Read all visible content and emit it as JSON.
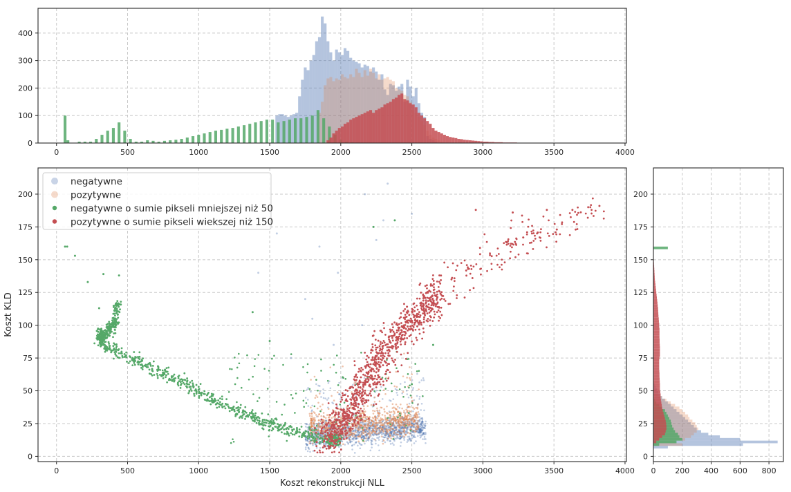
{
  "chart_data": [
    {
      "type": "histogram",
      "panel": "top",
      "xlim": [
        -130,
        4010
      ],
      "ylim": [
        0,
        490
      ],
      "xticks": [
        0,
        500,
        1000,
        1500,
        2000,
        2500,
        3000,
        3500,
        4000
      ],
      "yticks": [
        0,
        100,
        200,
        300,
        400
      ],
      "grid": true,
      "series": [
        {
          "name": "negatywne",
          "color": "#4c72b0",
          "alpha": 0.42,
          "x": [
            1550,
            1570,
            1590,
            1610,
            1630,
            1650,
            1670,
            1690,
            1710,
            1730,
            1750,
            1770,
            1790,
            1810,
            1830,
            1850,
            1870,
            1890,
            1910,
            1930,
            1950,
            1970,
            1990,
            2010,
            2030,
            2050,
            2070,
            2090,
            2110,
            2130,
            2150,
            2170,
            2190,
            2210,
            2230,
            2250,
            2270,
            2290,
            2310,
            2330,
            2350,
            2370,
            2390,
            2410,
            2430,
            2450,
            2470,
            2490,
            2510,
            2530,
            2550,
            2570,
            2590,
            2610,
            2630,
            2650,
            2670
          ],
          "counts": [
            100,
            105,
            105,
            100,
            95,
            100,
            105,
            110,
            170,
            230,
            275,
            265,
            300,
            320,
            370,
            385,
            460,
            435,
            370,
            330,
            300,
            340,
            330,
            320,
            345,
            335,
            310,
            300,
            295,
            290,
            275,
            285,
            280,
            260,
            275,
            260,
            230,
            250,
            195,
            175,
            215,
            210,
            190,
            205,
            215,
            150,
            230,
            205,
            170,
            200,
            145,
            110,
            95,
            25,
            15,
            10,
            5
          ]
        },
        {
          "name": "pozytywne",
          "color": "#dd8452",
          "alpha": 0.3,
          "x": [
            1850,
            1870,
            1890,
            1910,
            1930,
            1950,
            1970,
            1990,
            2010,
            2030,
            2050,
            2070,
            2090,
            2110,
            2130,
            2150,
            2170,
            2190,
            2210,
            2230,
            2250,
            2270,
            2290,
            2310,
            2330,
            2350,
            2370,
            2390,
            2410,
            2430,
            2450,
            2470,
            2490,
            2510,
            2530,
            2550,
            2570,
            2590,
            2610,
            2630,
            2650,
            2670,
            2690,
            2710
          ],
          "counts": [
            110,
            150,
            210,
            235,
            240,
            225,
            235,
            230,
            250,
            240,
            235,
            250,
            240,
            270,
            255,
            240,
            265,
            245,
            270,
            255,
            235,
            250,
            230,
            235,
            240,
            230,
            225,
            200,
            195,
            190,
            175,
            170,
            150,
            120,
            110,
            95,
            80,
            65,
            45,
            30,
            20,
            15,
            10,
            5
          ]
        },
        {
          "name": "negatywne o sumie pikseli mniejszej niż 50",
          "color": "#55a868",
          "alpha": 0.85,
          "x": [
            60,
            80,
            160,
            200,
            240,
            280,
            320,
            360,
            400,
            440,
            480,
            520,
            560,
            600,
            640,
            680,
            720,
            760,
            800,
            840,
            880,
            920,
            960,
            1000,
            1040,
            1080,
            1120,
            1160,
            1200,
            1240,
            1280,
            1320,
            1360,
            1400,
            1440,
            1480,
            1520,
            1560,
            1600,
            1640,
            1680,
            1720,
            1760,
            1800,
            1840,
            1880,
            1920,
            1960,
            2000,
            2040,
            2080,
            2120
          ],
          "counts": [
            100,
            10,
            5,
            5,
            5,
            15,
            30,
            45,
            55,
            75,
            45,
            15,
            5,
            5,
            10,
            8,
            5,
            8,
            10,
            12,
            15,
            20,
            25,
            30,
            35,
            40,
            45,
            48,
            52,
            55,
            60,
            65,
            70,
            75,
            80,
            85,
            85,
            75,
            80,
            85,
            90,
            90,
            95,
            100,
            120,
            90,
            60,
            30,
            12,
            5,
            3,
            2
          ]
        },
        {
          "name": "pozytywne o sumie pikseli wiekszej niż 150",
          "color": "#c44e52",
          "alpha": 0.85,
          "x": [
            1910,
            1930,
            1950,
            1970,
            1990,
            2010,
            2030,
            2050,
            2070,
            2090,
            2110,
            2130,
            2150,
            2170,
            2190,
            2210,
            2230,
            2250,
            2270,
            2290,
            2310,
            2330,
            2350,
            2370,
            2390,
            2410,
            2430,
            2450,
            2470,
            2490,
            2510,
            2530,
            2550,
            2570,
            2590,
            2610,
            2630,
            2650,
            2670,
            2690,
            2710,
            2730,
            2750,
            2770,
            2790,
            2810,
            2830,
            2850,
            2870,
            2890,
            2910,
            2930,
            2950,
            2970,
            2990,
            3010,
            3030,
            3050,
            3070,
            3090,
            3110,
            3130,
            3150,
            3170,
            3190,
            3210,
            3230,
            3250,
            3270,
            3290,
            3310
          ],
          "counts": [
            10,
            20,
            35,
            45,
            55,
            60,
            70,
            75,
            85,
            90,
            95,
            100,
            105,
            110,
            115,
            120,
            110,
            120,
            125,
            130,
            140,
            145,
            150,
            160,
            165,
            175,
            180,
            160,
            155,
            145,
            140,
            130,
            110,
            100,
            90,
            80,
            70,
            55,
            45,
            40,
            35,
            30,
            25,
            22,
            20,
            18,
            15,
            14,
            12,
            11,
            10,
            9,
            8,
            7,
            6,
            5,
            5,
            4,
            4,
            3,
            3,
            3,
            2,
            2,
            2,
            2,
            2,
            1,
            1,
            1,
            1
          ]
        }
      ]
    },
    {
      "type": "scatter",
      "panel": "main",
      "xlabel": "Koszt rekonstrukcji NLL",
      "ylabel": "Koszt KLD",
      "xlim": [
        -130,
        4010
      ],
      "ylim": [
        -4,
        220
      ],
      "xticks": [
        0,
        500,
        1000,
        1500,
        2000,
        2500,
        3000,
        3500,
        4000
      ],
      "yticks": [
        0,
        25,
        50,
        75,
        100,
        125,
        150,
        175,
        200
      ],
      "grid": true,
      "legend": "top-left",
      "series": [
        {
          "name": "negatywne",
          "color": "#4c72b0",
          "alpha": 0.35,
          "cluster": {
            "cx": [
              1750,
              2600
            ],
            "cy": [
              8,
              30
            ],
            "count": 1400
          },
          "outliers": [
            [
              2330,
              208
            ],
            [
              2170,
              200
            ],
            [
              1850,
              160
            ],
            [
              1420,
              140
            ],
            [
              1750,
              120
            ],
            [
              2300,
              180
            ],
            [
              1980,
              140
            ],
            [
              2500,
              185
            ],
            [
              2150,
              100
            ],
            [
              1800,
              105
            ],
            [
              1650,
              75
            ],
            [
              1950,
              85
            ],
            [
              2250,
              165
            ],
            [
              1550,
              170
            ]
          ]
        },
        {
          "name": "pozytywne",
          "color": "#dd8452",
          "alpha": 0.5,
          "cluster": {
            "cx": [
              1780,
              2550
            ],
            "cy": [
              12,
              38
            ],
            "count": 900
          },
          "outliers": []
        },
        {
          "name": "negatywne o sumie pikseli mniejszej niż 50",
          "color": "#55a868",
          "alpha": 1,
          "curve": [
            [
              430,
              117
            ],
            [
              410,
              100
            ],
            [
              350,
              95
            ],
            [
              290,
              91
            ],
            [
              350,
              85
            ],
            [
              500,
              76
            ],
            [
              700,
              65
            ],
            [
              900,
              56
            ],
            [
              1100,
              44
            ],
            [
              1300,
              33
            ],
            [
              1500,
              25
            ],
            [
              1700,
              18
            ],
            [
              1900,
              13
            ],
            [
              2000,
              12
            ]
          ],
          "count": 900,
          "outliers": [
            [
              60,
              160
            ],
            [
              75,
              160
            ],
            [
              130,
              153
            ],
            [
              220,
              133
            ],
            [
              330,
              139
            ],
            [
              440,
              138
            ],
            [
              300,
              113
            ],
            [
              1380,
              110
            ],
            [
              1500,
              88
            ],
            [
              2500,
              55
            ],
            [
              2650,
              85
            ],
            [
              2380,
              180
            ],
            [
              2230,
              175
            ]
          ]
        },
        {
          "name": "pozytywne o sumie pikseli wiekszej niż 150",
          "color": "#c44e52",
          "alpha": 1,
          "trend": [
            [
              1900,
              10
            ],
            [
              2100,
              40
            ],
            [
              2300,
              80
            ],
            [
              2550,
              110
            ],
            [
              2800,
              135
            ],
            [
              3100,
              155
            ],
            [
              3300,
              170
            ],
            [
              3550,
              175
            ],
            [
              3800,
              190
            ]
          ],
          "count": 1100,
          "outliers": [
            [
              3450,
              188
            ],
            [
              3630,
              188
            ],
            [
              3820,
              191
            ],
            [
              3520,
              173
            ],
            [
              3210,
              186
            ],
            [
              2950,
              188
            ]
          ]
        }
      ]
    },
    {
      "type": "histogram",
      "orientation": "horizontal",
      "panel": "right",
      "xlim": [
        0,
        900
      ],
      "ylim": [
        -4,
        220
      ],
      "xticks": [
        0,
        200,
        400,
        600,
        800
      ],
      "yticks": [
        0,
        25,
        50,
        75,
        100,
        125,
        150,
        175,
        200
      ],
      "grid": true,
      "series": [
        {
          "name": "negatywne",
          "color": "#4c72b0",
          "alpha": 0.42,
          "y": [
            7,
            9,
            11,
            13,
            15,
            17,
            19,
            21,
            23,
            25,
            27,
            29,
            31,
            33,
            35,
            37,
            39,
            41,
            43,
            45,
            47,
            49,
            51,
            53,
            55
          ],
          "counts": [
            100,
            620,
            860,
            600,
            460,
            380,
            330,
            300,
            280,
            260,
            240,
            220,
            200,
            180,
            160,
            140,
            120,
            100,
            80,
            60,
            45,
            35,
            25,
            15,
            8
          ]
        },
        {
          "name": "pozytywne",
          "color": "#dd8452",
          "alpha": 0.3,
          "y": [
            9,
            11,
            13,
            15,
            17,
            19,
            21,
            23,
            25,
            27,
            29,
            31,
            33,
            35,
            37,
            39,
            41,
            43,
            45,
            47
          ],
          "counts": [
            200,
            150,
            220,
            260,
            280,
            300,
            310,
            300,
            290,
            270,
            250,
            240,
            220,
            200,
            180,
            150,
            120,
            90,
            60,
            30
          ]
        },
        {
          "name": "negatywne o sumie pikseli mniejszej niż 50",
          "color": "#55a868",
          "alpha": 0.85,
          "y": [
            9,
            11,
            13,
            15,
            17,
            19,
            21,
            23,
            25,
            27,
            29,
            31,
            33,
            35,
            37,
            39,
            41,
            43,
            159
          ],
          "counts": [
            40,
            160,
            200,
            180,
            170,
            150,
            140,
            130,
            125,
            120,
            110,
            100,
            90,
            80,
            60,
            40,
            20,
            10,
            100
          ]
        },
        {
          "name": "pozytywne o sumie pikseli wiekszej niż 150",
          "color": "#c44e52",
          "alpha": 0.85,
          "y": [
            11,
            13,
            15,
            17,
            19,
            21,
            23,
            25,
            27,
            29,
            31,
            33,
            35,
            37,
            39,
            41,
            43,
            45,
            47,
            49,
            51,
            53,
            55,
            57,
            59,
            61,
            63,
            65,
            67,
            69,
            71,
            73,
            75,
            77,
            79,
            81,
            83,
            85,
            87,
            89,
            91,
            93,
            95,
            97,
            99,
            101,
            103,
            105,
            107,
            109,
            111,
            113,
            115,
            117,
            119,
            121,
            123,
            125,
            127,
            129,
            131,
            133,
            135,
            137,
            139,
            141,
            143,
            145,
            147,
            149
          ],
          "counts": [
            20,
            40,
            60,
            80,
            85,
            90,
            90,
            88,
            85,
            80,
            75,
            70,
            65,
            60,
            58,
            55,
            52,
            50,
            50,
            48,
            45,
            45,
            45,
            44,
            43,
            42,
            42,
            41,
            40,
            40,
            40,
            40,
            42,
            45,
            45,
            45,
            45,
            44,
            43,
            43,
            42,
            42,
            42,
            42,
            40,
            40,
            38,
            37,
            35,
            34,
            33,
            32,
            30,
            28,
            26,
            24,
            22,
            20,
            18,
            16,
            14,
            12,
            10,
            9,
            8,
            7,
            6,
            5,
            4,
            3
          ]
        }
      ]
    }
  ]
}
